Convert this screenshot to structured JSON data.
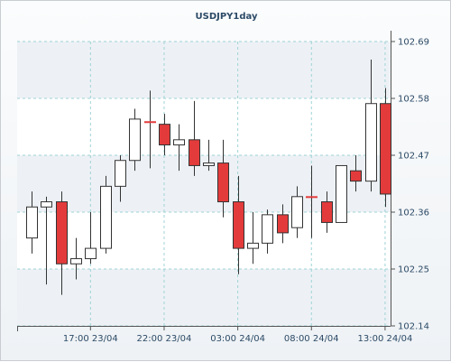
{
  "chart_data": {
    "type": "candlestick",
    "title": "USDJPY1day",
    "symbol": "USDJPY",
    "timeframe": "1day",
    "y_ticks": [
      "102.69",
      "102.58",
      "102.47",
      "102.36",
      "102.25",
      "102.14"
    ],
    "ylim": [
      102.14,
      102.69
    ],
    "x_ticks": [
      {
        "label": "17:00 23/04",
        "index": 4
      },
      {
        "label": "22:00 23/04",
        "index": 9
      },
      {
        "label": "03:00 24/04",
        "index": 14
      },
      {
        "label": "08:00 24/04",
        "index": 19
      },
      {
        "label": "13:00 24/04",
        "index": 24
      }
    ],
    "candles": [
      {
        "open": 102.31,
        "high": 102.4,
        "low": 102.28,
        "close": 102.37
      },
      {
        "open": 102.37,
        "high": 102.39,
        "low": 102.22,
        "close": 102.38
      },
      {
        "open": 102.38,
        "high": 102.4,
        "low": 102.2,
        "close": 102.26
      },
      {
        "open": 102.26,
        "high": 102.31,
        "low": 102.23,
        "close": 102.27
      },
      {
        "open": 102.27,
        "high": 102.36,
        "low": 102.26,
        "close": 102.29
      },
      {
        "open": 102.29,
        "high": 102.43,
        "low": 102.28,
        "close": 102.41
      },
      {
        "open": 102.41,
        "high": 102.47,
        "low": 102.38,
        "close": 102.46
      },
      {
        "open": 102.46,
        "high": 102.56,
        "low": 102.44,
        "close": 102.54
      },
      {
        "open": 102.535,
        "high": 102.595,
        "low": 102.445,
        "close": 102.535
      },
      {
        "open": 102.53,
        "high": 102.55,
        "low": 102.47,
        "close": 102.49
      },
      {
        "open": 102.49,
        "high": 102.53,
        "low": 102.44,
        "close": 102.5
      },
      {
        "open": 102.5,
        "high": 102.575,
        "low": 102.43,
        "close": 102.45
      },
      {
        "open": 102.45,
        "high": 102.5,
        "low": 102.44,
        "close": 102.455
      },
      {
        "open": 102.455,
        "high": 102.5,
        "low": 102.35,
        "close": 102.38
      },
      {
        "open": 102.38,
        "high": 102.43,
        "low": 102.24,
        "close": 102.29
      },
      {
        "open": 102.29,
        "high": 102.36,
        "low": 102.26,
        "close": 102.3
      },
      {
        "open": 102.3,
        "high": 102.365,
        "low": 102.28,
        "close": 102.355
      },
      {
        "open": 102.355,
        "high": 102.375,
        "low": 102.3,
        "close": 102.32
      },
      {
        "open": 102.33,
        "high": 102.41,
        "low": 102.31,
        "close": 102.39
      },
      {
        "open": 102.39,
        "high": 102.45,
        "low": 102.31,
        "close": 102.39
      },
      {
        "open": 102.38,
        "high": 102.4,
        "low": 102.32,
        "close": 102.34
      },
      {
        "open": 102.34,
        "high": 102.45,
        "low": 102.34,
        "close": 102.45
      },
      {
        "open": 102.44,
        "high": 102.47,
        "low": 102.4,
        "close": 102.42
      },
      {
        "open": 102.42,
        "high": 102.655,
        "low": 102.4,
        "close": 102.57
      },
      {
        "open": 102.57,
        "high": 102.6,
        "low": 102.37,
        "close": 102.395
      }
    ],
    "colors": {
      "bull_fill": "#ffffff",
      "bear_fill": "#e33b3b",
      "outline": "#333333",
      "grid": "#9fd3d6",
      "band_light": "#ffffff",
      "band_dark": "#edf1f5",
      "text": "#2c4a66"
    },
    "grid": true
  }
}
